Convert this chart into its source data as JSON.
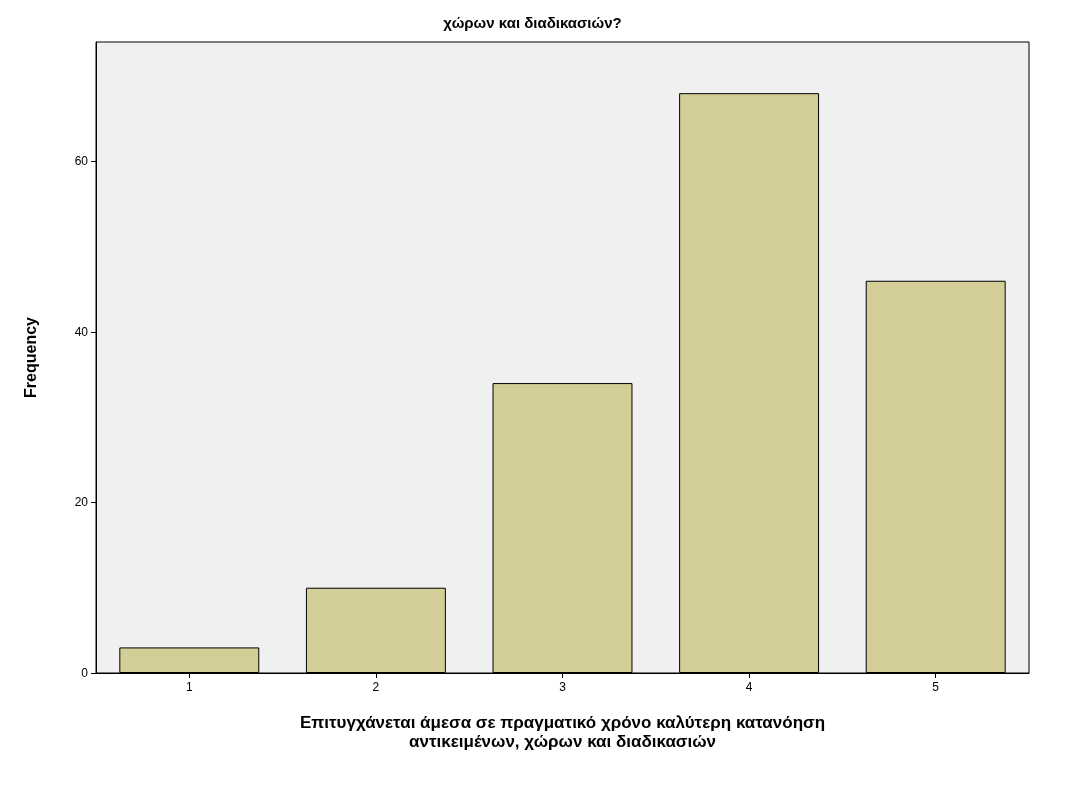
{
  "chart_data": {
    "type": "bar",
    "title": "χώρων και διαδικασιών?",
    "xlabel": "Επιτυγχάνεται άμεσα σε πραγματικό χρόνο καλύτερη κατανόηση\nαντικειμένων, χώρων και διαδικασιών",
    "ylabel": "Frequency",
    "categories": [
      "1",
      "2",
      "3",
      "4",
      "5"
    ],
    "values": [
      3,
      10,
      34,
      68,
      46
    ],
    "color": "#d3ce97",
    "ylim": [
      0,
      74
    ],
    "yticks": [
      0,
      20,
      40,
      60
    ],
    "grid": false
  }
}
